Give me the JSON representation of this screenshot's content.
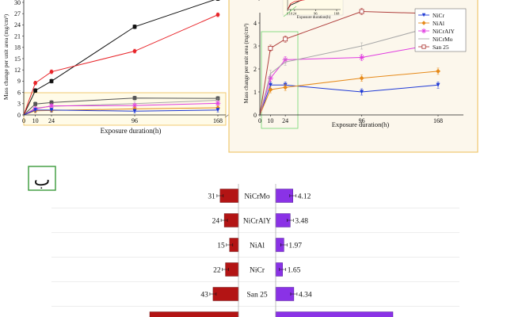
{
  "colors": {
    "black": "#111111",
    "red": "#e8252a",
    "blue": "#1f3ad6",
    "orange": "#e68a1a",
    "magenta": "#e03ce0",
    "gray": "#a8a8a8",
    "brown": "#b0413e",
    "green": "#6fd66f",
    "frame": "#f0c870",
    "panel_bg": "#fcf7ec",
    "inset_bg": "#fffbe8",
    "darkred": "#b31414",
    "purple": "#8a32e6"
  },
  "panel_label": "ب",
  "chart_data": [
    {
      "type": "line",
      "id": "main",
      "title": "",
      "xlabel": "Exposure duration(h)",
      "ylabel": "Mass change per unit area (mg/cm²)",
      "x_ticks": [
        0,
        10,
        24,
        96,
        168
      ],
      "y_ticks": [
        0,
        3,
        6,
        9,
        12,
        15,
        18,
        21,
        24,
        27,
        30
      ],
      "y_tick_labels": [
        "0",
        "3",
        "6",
        "9",
        "12",
        "15",
        "18",
        "21",
        "24",
        "27",
        "30"
      ],
      "xlim": [
        0,
        168
      ],
      "ylim": [
        0,
        30
      ],
      "series": [
        {
          "name": "Black",
          "color": "#111111",
          "marker": "square",
          "x": [
            0,
            10,
            24,
            96,
            168
          ],
          "y": [
            0,
            6.5,
            9,
            23.5,
            31
          ]
        },
        {
          "name": "Red",
          "color": "#e8252a",
          "marker": "circle",
          "x": [
            0,
            10,
            24,
            96,
            168
          ],
          "y": [
            0,
            8.5,
            11.5,
            17,
            26.7
          ]
        },
        {
          "name": "San 25",
          "color": "#555555",
          "marker": "square",
          "x": [
            0,
            10,
            24,
            96,
            168
          ],
          "y": [
            0,
            2.9,
            3.3,
            4.5,
            4.4
          ]
        },
        {
          "name": "NiCrMo",
          "color": "#a8a8a8",
          "marker": "none",
          "x": [
            0,
            10,
            24,
            96,
            168
          ],
          "y": [
            0,
            1.8,
            2.3,
            3,
            3.9
          ]
        },
        {
          "name": "NiCrAlY",
          "color": "#e03ce0",
          "marker": "star",
          "x": [
            0,
            10,
            24,
            96,
            168
          ],
          "y": [
            0,
            1.6,
            2.4,
            2.5,
            3.1
          ]
        },
        {
          "name": "NiAl",
          "color": "#e68a1a",
          "marker": "diamond",
          "x": [
            0,
            10,
            24,
            96,
            168
          ],
          "y": [
            0,
            1.1,
            1.2,
            1.6,
            1.9
          ]
        },
        {
          "name": "NiCr",
          "color": "#1f3ad6",
          "marker": "triangle",
          "x": [
            0,
            10,
            24,
            96,
            168
          ],
          "y": [
            0,
            1.3,
            1.3,
            1,
            1.3
          ]
        }
      ]
    },
    {
      "type": "line",
      "id": "zoom",
      "title": "",
      "xlabel": "Exposure duration(h)",
      "ylabel": "Mass change per unit area (mg/cm²)",
      "x_ticks": [
        0,
        10,
        24,
        96,
        168
      ],
      "y_ticks": [
        0,
        1,
        2,
        3,
        4,
        5
      ],
      "y_tick_labels": [
        "0",
        "1",
        "2",
        "3",
        "4",
        ""
      ],
      "xlim": [
        0,
        168
      ],
      "ylim": [
        0,
        5
      ],
      "legend": [
        "NiCr",
        "NiAl",
        "NiCrAlY",
        "NiCrMo",
        "San 25"
      ],
      "legend_position": "right",
      "series": [
        {
          "name": "NiCr",
          "color": "#1f3ad6",
          "marker": "triangle",
          "x": [
            0,
            10,
            24,
            96,
            168
          ],
          "y": [
            0,
            1.3,
            1.3,
            1,
            1.3
          ]
        },
        {
          "name": "NiAl",
          "color": "#e68a1a",
          "marker": "diamond",
          "x": [
            0,
            10,
            24,
            96,
            168
          ],
          "y": [
            0,
            1.1,
            1.2,
            1.6,
            1.9
          ]
        },
        {
          "name": "NiCrAlY",
          "color": "#e03ce0",
          "marker": "star",
          "x": [
            0,
            10,
            24,
            96,
            168
          ],
          "y": [
            0,
            1.6,
            2.4,
            2.5,
            3.1
          ]
        },
        {
          "name": "NiCrMo",
          "color": "#a8a8a8",
          "marker": "none",
          "x": [
            0,
            10,
            24,
            96,
            168
          ],
          "y": [
            0,
            1.8,
            2.3,
            3,
            3.9
          ]
        },
        {
          "name": "San 25",
          "color": "#b0413e",
          "marker": "opensquare",
          "x": [
            0,
            10,
            24,
            96,
            168
          ],
          "y": [
            0,
            2.9,
            3.3,
            4.5,
            4.4
          ]
        }
      ]
    },
    {
      "type": "line",
      "id": "mini",
      "title": "",
      "xlabel": "Exposure duration(h)",
      "x_ticks": [
        0,
        10,
        24,
        96,
        168
      ],
      "xlim": [
        0,
        168
      ],
      "ylim": [
        0,
        30
      ],
      "series": [
        {
          "name": "Black",
          "color": "#111111",
          "x": [
            0,
            10,
            24,
            96,
            168
          ],
          "y": [
            0,
            6.5,
            9,
            23.5,
            31
          ]
        },
        {
          "name": "Red",
          "color": "#e8252a",
          "x": [
            0,
            10,
            24,
            96,
            168
          ],
          "y": [
            0,
            8.5,
            11.5,
            17,
            26.7
          ]
        }
      ]
    },
    {
      "type": "bar",
      "id": "butterfly",
      "orientation": "horizontal",
      "categories": [
        "NiCrMo",
        "NiCrAlY",
        "NiAl",
        "NiCr",
        "San 25",
        ""
      ],
      "series": [
        {
          "name": "left",
          "color": "#b31414",
          "values": [
            31,
            24,
            15,
            22,
            43,
            150
          ],
          "labels": [
            "31",
            "24",
            "15",
            "22",
            "43",
            ""
          ]
        },
        {
          "name": "right",
          "color": "#8a32e6",
          "values": [
            4.12,
            3.48,
            1.97,
            1.65,
            4.34,
            28
          ],
          "labels": [
            "4.12",
            "3.48",
            "1.97",
            "1.65",
            "4.34",
            ""
          ]
        }
      ],
      "left_max": 150,
      "right_max": 28
    }
  ]
}
